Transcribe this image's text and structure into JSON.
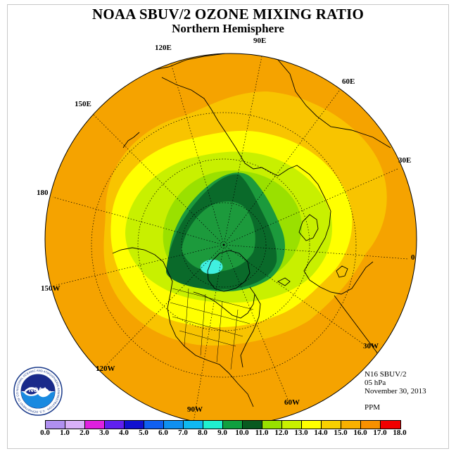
{
  "header": {
    "title": "NOAA SBUV/2 OZONE MIXING RATIO",
    "subtitle": "Northern Hemisphere"
  },
  "map": {
    "longitude_labels": {
      "lon_90e": "90E",
      "lon_60e": "60E",
      "lon_30e": "30E",
      "lon_0": "0",
      "lon_30w": "30W",
      "lon_60w": "60W",
      "lon_90w": "90W",
      "lon_120w": "120W",
      "lon_150w": "150W",
      "lon_180": "180",
      "lon_150e": "150E",
      "lon_120e": "120E"
    },
    "colors": {
      "outer_orange": "#f5a300",
      "amber": "#f8c400",
      "yellow": "#ffff00",
      "yellow_green": "#c8f000",
      "light_green": "#9ae000",
      "green": "#1c9a3c",
      "dark_green": "#0a6a2a",
      "cyan": "#40f0e0"
    }
  },
  "info": {
    "instrument": "N16 SBUV/2",
    "pressure": "05 hPa",
    "date": "November 30, 2013",
    "units": "PPM"
  },
  "logo": {
    "text": "NOAA",
    "ring_text": "NATIONAL OCEANIC AND ATMOSPHERIC ADMINISTRATION · U.S. DEPARTMENT OF COMMERCE"
  },
  "colorbar": {
    "colors": [
      "#b090f0",
      "#d8b0f8",
      "#e020e0",
      "#6020f0",
      "#1010d0",
      "#1060f0",
      "#1090f0",
      "#10b8f0",
      "#20f0d0",
      "#10a040",
      "#0a8030",
      "#085a20",
      "#98e000",
      "#c8f000",
      "#ffff00",
      "#f8d000",
      "#f8b000",
      "#f89000",
      "#f86010",
      "#f00000",
      "#e00010",
      "#806040"
    ],
    "ticks": [
      "0.0",
      "1.0",
      "2.0",
      "3.0",
      "4.0",
      "5.0",
      "6.0",
      "7.0",
      "8.0",
      "9.0",
      "10.0",
      "11.0",
      "12.0",
      "13.0",
      "14.0",
      "15.0",
      "16.0",
      "17.0",
      "18.0"
    ]
  }
}
